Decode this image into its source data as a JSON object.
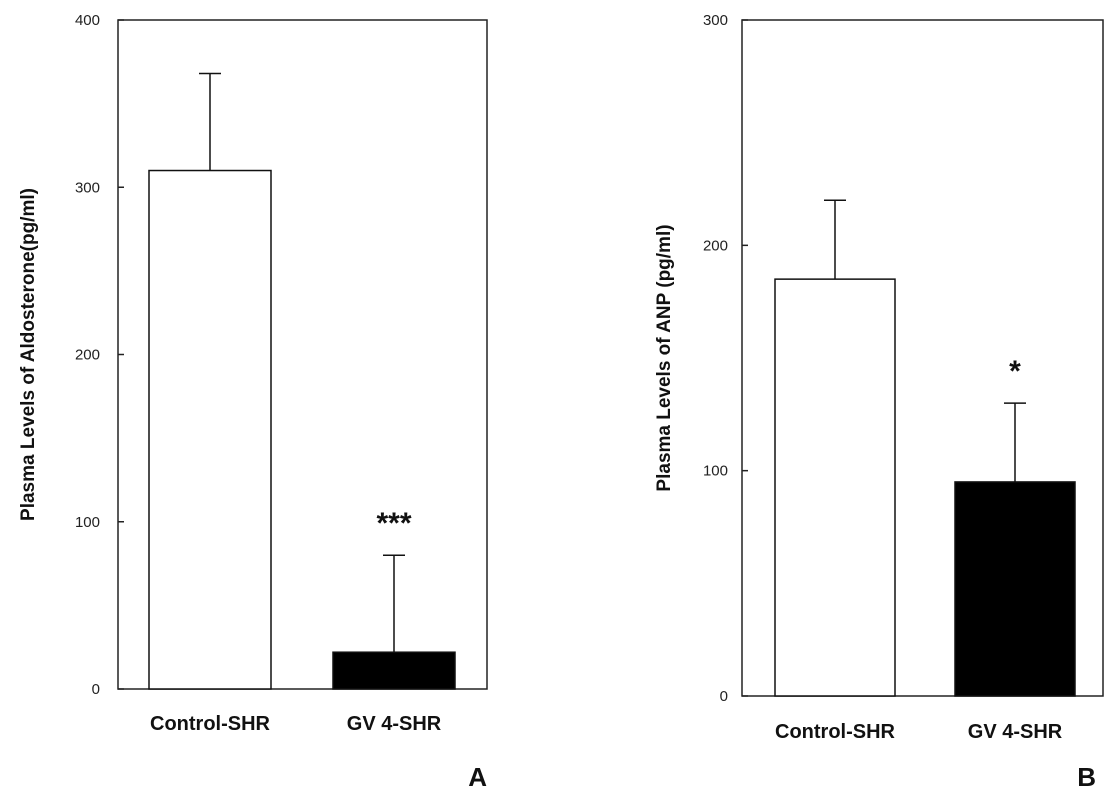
{
  "chart_data": [
    {
      "panel_label": "A",
      "type": "bar",
      "ylabel": "Plasma Levels of Aldosterone(pg/ml)",
      "ylim": [
        0,
        400
      ],
      "yticks": [
        0,
        100,
        200,
        300,
        400
      ],
      "categories": [
        "Control-SHR",
        "GV 4-SHR"
      ],
      "values": [
        310,
        22
      ],
      "errors": [
        58,
        58
      ],
      "bar_colors": [
        "#ffffff",
        "#000000"
      ],
      "significance": [
        "",
        "***"
      ]
    },
    {
      "panel_label": "B",
      "type": "bar",
      "ylabel": "Plasma Levels of ANP (pg/ml)",
      "ylim": [
        0,
        300
      ],
      "yticks": [
        0,
        100,
        200,
        300
      ],
      "categories": [
        "Control-SHR",
        "GV 4-SHR"
      ],
      "values": [
        185,
        95
      ],
      "errors": [
        35,
        35
      ],
      "bar_colors": [
        "#ffffff",
        "#000000"
      ],
      "significance": [
        "",
        "*"
      ]
    }
  ]
}
